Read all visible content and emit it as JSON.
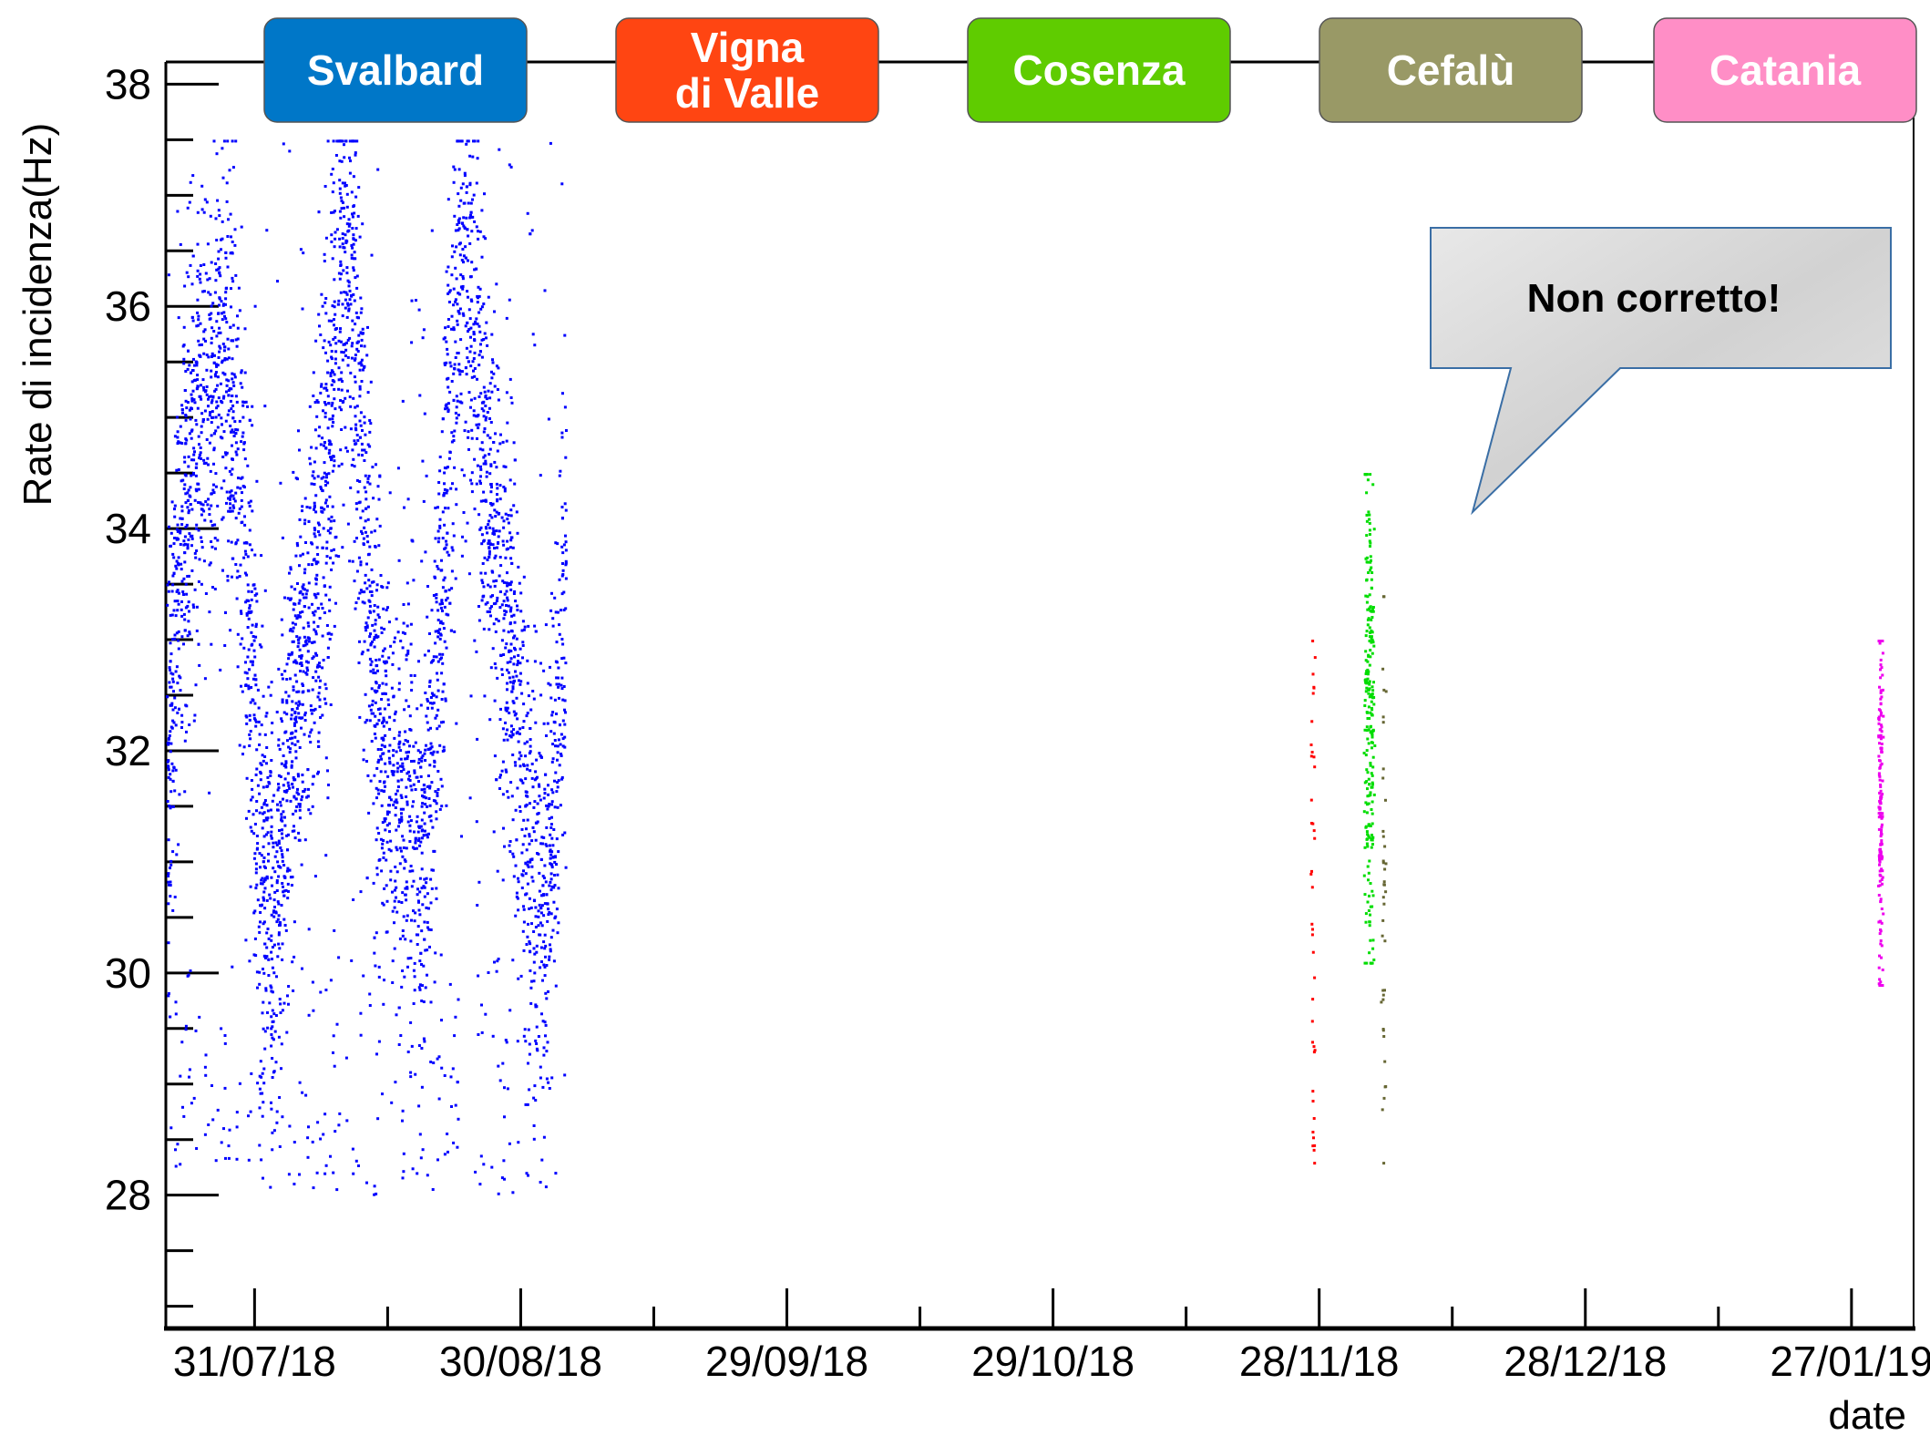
{
  "chart_data": {
    "type": "scatter",
    "title": "",
    "xlabel": "date",
    "ylabel": "Rate di incidenza(Hz)",
    "x_axis_type": "date",
    "xlim": [
      "2018-07-21",
      "2019-02-03"
    ],
    "ylim": [
      26.8,
      38.2
    ],
    "y_ticks": [
      28,
      30,
      32,
      34,
      36,
      38
    ],
    "x_ticks": [
      "31/07/18",
      "30/08/18",
      "29/09/18",
      "29/10/18",
      "28/11/18",
      "28/12/18",
      "27/01/19"
    ],
    "x_tick_dates": [
      "2018-07-31",
      "2018-08-30",
      "2018-09-29",
      "2018-10-29",
      "2018-11-28",
      "2018-12-28",
      "2019-01-27"
    ],
    "grid": false,
    "annotations": [
      {
        "text": "Non corretto!",
        "type": "callout"
      }
    ],
    "sites": [
      {
        "name": "Svalbard",
        "color": "#0077c8"
      },
      {
        "name": "Vigna\ndi Valle",
        "color": "#ff4512"
      },
      {
        "name": "Cosenza",
        "color": "#5fcc00"
      },
      {
        "name": "Cefalù",
        "color": "#999966"
      },
      {
        "name": "Catania",
        "color": "#ff8ec6"
      }
    ],
    "series": [
      {
        "site": "Svalbard",
        "color": "#0000ff",
        "x_range": [
          "2018-07-21",
          "2018-09-04"
        ],
        "y_range": [
          28.0,
          37.5
        ],
        "note": "dense cloud oscillating between ~30.5 and ~36.5 Hz"
      },
      {
        "site": "Vigna di Valle",
        "color": "#ff0000",
        "x_range": [
          "2018-11-27",
          "2018-11-27"
        ],
        "y_range": [
          28.3,
          33.0
        ]
      },
      {
        "site": "Cosenza",
        "color": "#00dd00",
        "x_range": [
          "2018-12-03",
          "2018-12-04"
        ],
        "y_range": [
          30.1,
          34.5
        ]
      },
      {
        "site": "Cefalù",
        "color": "#666633",
        "x_range": [
          "2018-12-05",
          "2018-12-05"
        ],
        "y_range": [
          28.3,
          33.4
        ]
      },
      {
        "site": "Catania",
        "color": "#ee00ee",
        "x_range": [
          "2019-01-30",
          "2019-01-30"
        ],
        "y_range": [
          29.9,
          33.0
        ]
      }
    ]
  }
}
